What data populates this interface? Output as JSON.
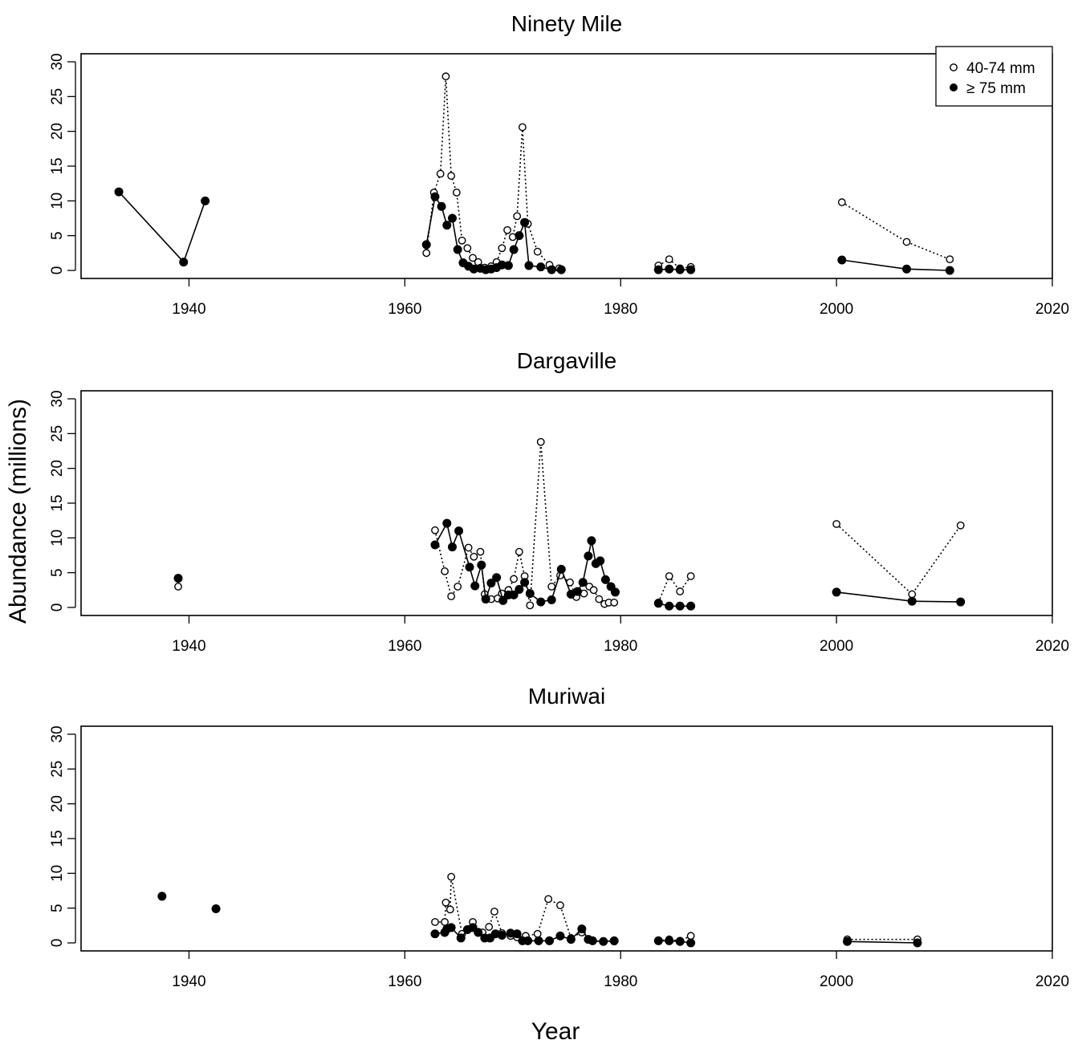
{
  "figure": {
    "xlabel": "Year",
    "ylabel": "Abundance (millions)",
    "legend": [
      "40-74 mm",
      "≥ 75 mm"
    ],
    "legend_position": "top-right of first panel"
  },
  "chart_data": [
    {
      "type": "line",
      "title": "Ninety Mile",
      "xlabel": "",
      "ylabel": "",
      "xlim": [
        1930,
        2020
      ],
      "ylim": [
        0,
        30
      ],
      "xticks": [
        1940,
        1960,
        1980,
        2000,
        2020
      ],
      "yticks": [
        0,
        5,
        10,
        15,
        20,
        25,
        30
      ],
      "grid": false,
      "legend": "top-right",
      "series": [
        {
          "name": "40-74 mm",
          "marker": "open-circle",
          "linestyle": "dotted",
          "segments": [
            [
              [
                1962,
                2.5
              ],
              [
                1962.7,
                11.2
              ],
              [
                1963.3,
                13.9
              ],
              [
                1963.8,
                27.9
              ],
              [
                1964.3,
                13.6
              ],
              [
                1964.8,
                11.2
              ],
              [
                1965.3,
                4.3
              ],
              [
                1965.8,
                3.2
              ],
              [
                1966.3,
                1.8
              ],
              [
                1966.8,
                1.2
              ],
              [
                1967.4,
                0.4
              ],
              [
                1968,
                0.6
              ],
              [
                1968.5,
                1.2
              ],
              [
                1969,
                3.2
              ],
              [
                1969.5,
                5.8
              ],
              [
                1970,
                4.8
              ],
              [
                1970.4,
                7.8
              ],
              [
                1970.9,
                20.6
              ],
              [
                1971.4,
                6.7
              ],
              [
                1972.3,
                2.7
              ],
              [
                1973.4,
                0.8
              ],
              [
                1974.3,
                0.3
              ]
            ],
            [
              [
                1983.5,
                0.7
              ],
              [
                1984.5,
                1.6
              ],
              [
                1985.5,
                0.3
              ],
              [
                1986.5,
                0.5
              ]
            ],
            [
              [
                2000.5,
                9.8
              ],
              [
                2006.5,
                4.1
              ],
              [
                2010.5,
                1.6
              ]
            ]
          ]
        },
        {
          "name": "≥ 75 mm",
          "marker": "filled-circle",
          "linestyle": "solid",
          "segments": [
            [
              [
                1933.5,
                11.3
              ],
              [
                1939.5,
                1.2
              ],
              [
                1941.5,
                10
              ]
            ],
            [
              [
                1962,
                3.7
              ],
              [
                1962.8,
                10.6
              ],
              [
                1963.4,
                9.2
              ],
              [
                1963.9,
                6.5
              ],
              [
                1964.4,
                7.5
              ],
              [
                1964.9,
                3
              ],
              [
                1965.4,
                1.1
              ],
              [
                1965.9,
                0.6
              ],
              [
                1966.4,
                0.2
              ],
              [
                1967,
                0.3
              ],
              [
                1967.5,
                0.1
              ],
              [
                1968,
                0.2
              ],
              [
                1968.5,
                0.4
              ],
              [
                1969,
                0.8
              ],
              [
                1969.6,
                0.7
              ],
              [
                1970.1,
                3
              ],
              [
                1970.6,
                5
              ],
              [
                1971.1,
                6.9
              ],
              [
                1971.5,
                0.7
              ],
              [
                1972.6,
                0.5
              ],
              [
                1973.6,
                0.1
              ],
              [
                1974.5,
                0.1
              ]
            ],
            [
              [
                1983.5,
                0.1
              ],
              [
                1984.5,
                0.2
              ],
              [
                1985.5,
                0.1
              ],
              [
                1986.5,
                0.1
              ]
            ],
            [
              [
                2000.5,
                1.5
              ],
              [
                2006.5,
                0.2
              ],
              [
                2010.5,
                0
              ]
            ]
          ]
        }
      ]
    },
    {
      "type": "line",
      "title": "Dargaville",
      "xlabel": "",
      "ylabel": "",
      "xlim": [
        1930,
        2020
      ],
      "ylim": [
        0,
        30
      ],
      "xticks": [
        1940,
        1960,
        1980,
        2000,
        2020
      ],
      "yticks": [
        0,
        5,
        10,
        15,
        20,
        25,
        30
      ],
      "grid": false,
      "series": [
        {
          "name": "40-74 mm",
          "marker": "open-circle",
          "linestyle": "dotted",
          "segments": [
            [
              [
                1939,
                3
              ]
            ],
            [
              [
                1962.8,
                11.1
              ],
              [
                1963.7,
                5.2
              ],
              [
                1964.3,
                1.6
              ],
              [
                1964.9,
                3
              ],
              [
                1965.9,
                8.6
              ],
              [
                1966.4,
                7.3
              ],
              [
                1967,
                8
              ],
              [
                1967.4,
                1.9
              ],
              [
                1968,
                1.2
              ],
              [
                1968.6,
                1.3
              ],
              [
                1969,
                2
              ],
              [
                1969.6,
                2.5
              ],
              [
                1970.1,
                4.1
              ],
              [
                1970.6,
                8
              ],
              [
                1971.1,
                4.5
              ],
              [
                1971.6,
                0.3
              ],
              [
                1972.6,
                23.8
              ],
              [
                1973.6,
                3
              ],
              [
                1974.4,
                4.6
              ],
              [
                1975.3,
                3.6
              ],
              [
                1975.9,
                1.5
              ],
              [
                1976.6,
                2
              ],
              [
                1977.1,
                3
              ],
              [
                1977.5,
                2.5
              ],
              [
                1978,
                1.2
              ],
              [
                1978.5,
                0.5
              ],
              [
                1978.9,
                0.7
              ],
              [
                1979.4,
                0.7
              ]
            ],
            [
              [
                1983.5,
                0.7
              ],
              [
                1984.5,
                4.5
              ],
              [
                1985.5,
                2.3
              ],
              [
                1986.5,
                4.5
              ]
            ],
            [
              [
                2000,
                12
              ],
              [
                2007,
                1.9
              ],
              [
                2011.5,
                11.8
              ]
            ]
          ]
        },
        {
          "name": "≥ 75 mm",
          "marker": "filled-circle",
          "linestyle": "solid",
          "segments": [
            [
              [
                1939,
                4.2
              ]
            ],
            [
              [
                1962.8,
                9
              ],
              [
                1963.9,
                12.1
              ],
              [
                1964.4,
                8.7
              ],
              [
                1965,
                11
              ],
              [
                1966,
                5.8
              ],
              [
                1966.5,
                3.1
              ],
              [
                1967.1,
                6.1
              ],
              [
                1967.5,
                1.2
              ],
              [
                1968,
                3.5
              ],
              [
                1968.5,
                4.3
              ],
              [
                1969.1,
                1
              ],
              [
                1969.6,
                1.8
              ],
              [
                1970.1,
                1.8
              ],
              [
                1970.6,
                2.6
              ],
              [
                1971.1,
                3.6
              ],
              [
                1971.6,
                2
              ],
              [
                1972.6,
                0.8
              ],
              [
                1973.6,
                1.1
              ],
              [
                1974.5,
                5.5
              ],
              [
                1975.4,
                1.9
              ],
              [
                1976,
                2.3
              ],
              [
                1976.5,
                3.6
              ],
              [
                1977,
                7.4
              ],
              [
                1977.3,
                9.6
              ],
              [
                1977.7,
                6.3
              ],
              [
                1978.1,
                6.7
              ],
              [
                1978.6,
                4
              ],
              [
                1979.1,
                3
              ],
              [
                1979.5,
                2.2
              ]
            ],
            [
              [
                1983.5,
                0.6
              ],
              [
                1984.5,
                0.2
              ],
              [
                1985.5,
                0.2
              ],
              [
                1986.5,
                0.2
              ]
            ],
            [
              [
                2000,
                2.2
              ],
              [
                2007,
                0.9
              ],
              [
                2011.5,
                0.8
              ]
            ]
          ]
        }
      ]
    },
    {
      "type": "line",
      "title": "Muriwai",
      "xlabel": "",
      "ylabel": "",
      "xlim": [
        1930,
        2020
      ],
      "ylim": [
        0,
        30
      ],
      "xticks": [
        1940,
        1960,
        1980,
        2000,
        2020
      ],
      "yticks": [
        0,
        5,
        10,
        15,
        20,
        25,
        30
      ],
      "grid": false,
      "series": [
        {
          "name": "40-74 mm",
          "marker": "open-circle",
          "linestyle": "dotted",
          "segments": [
            [
              [
                1962.8,
                3
              ],
              [
                1963.7,
                3
              ],
              [
                1963.8,
                5.8
              ],
              [
                1964.2,
                4.8
              ],
              [
                1964.3,
                9.5
              ],
              [
                1965.3,
                1.3
              ],
              [
                1966.3,
                3
              ],
              [
                1967.2,
                1.5
              ],
              [
                1967.8,
                2.3
              ],
              [
                1968.3,
                4.5
              ],
              [
                1969,
                1.4
              ],
              [
                1969.8,
                1
              ],
              [
                1970.4,
                0.8
              ],
              [
                1971.2,
                1
              ],
              [
                1972.3,
                1.3
              ],
              [
                1973.3,
                6.3
              ],
              [
                1974.4,
                5.4
              ],
              [
                1975.4,
                0.7
              ],
              [
                1976.4,
                1.5
              ],
              [
                1977.4,
                0.3
              ],
              [
                1978.4,
                0.2
              ],
              [
                1979.4,
                0.2
              ]
            ],
            [
              [
                1983.5,
                0.3
              ],
              [
                1984.5,
                0.5
              ],
              [
                1985.5,
                0.3
              ],
              [
                1986.5,
                1
              ]
            ],
            [
              [
                2001,
                0.5
              ],
              [
                2007.5,
                0.5
              ]
            ]
          ]
        },
        {
          "name": "≥ 75 mm",
          "marker": "filled-circle",
          "linestyle": "solid",
          "segments": [
            [
              [
                1937.5,
                6.7
              ]
            ],
            [
              [
                1942.5,
                4.9
              ]
            ],
            [
              [
                1962.8,
                1.3
              ],
              [
                1963.7,
                1.5
              ],
              [
                1963.9,
                2
              ],
              [
                1964.3,
                2.2
              ],
              [
                1965.2,
                0.7
              ],
              [
                1965.8,
                1.9
              ],
              [
                1966.3,
                2.2
              ],
              [
                1966.8,
                1.5
              ],
              [
                1967.4,
                0.7
              ],
              [
                1967.9,
                0.7
              ],
              [
                1968.4,
                1.3
              ],
              [
                1969,
                1.1
              ],
              [
                1969.8,
                1.4
              ],
              [
                1970.4,
                1.3
              ],
              [
                1970.9,
                0.3
              ],
              [
                1971.4,
                0.3
              ],
              [
                1972.4,
                0.3
              ],
              [
                1973.4,
                0.3
              ],
              [
                1974.4,
                1
              ],
              [
                1975.4,
                0.5
              ],
              [
                1976.4,
                2
              ],
              [
                1977,
                0.5
              ],
              [
                1977.4,
                0.3
              ],
              [
                1978.4,
                0.2
              ],
              [
                1979.4,
                0.3
              ]
            ],
            [
              [
                1983.5,
                0.3
              ],
              [
                1984.5,
                0.3
              ],
              [
                1985.5,
                0.2
              ],
              [
                1986.5,
                0
              ]
            ],
            [
              [
                2001,
                0.2
              ],
              [
                2007.5,
                0
              ]
            ]
          ]
        }
      ]
    }
  ]
}
